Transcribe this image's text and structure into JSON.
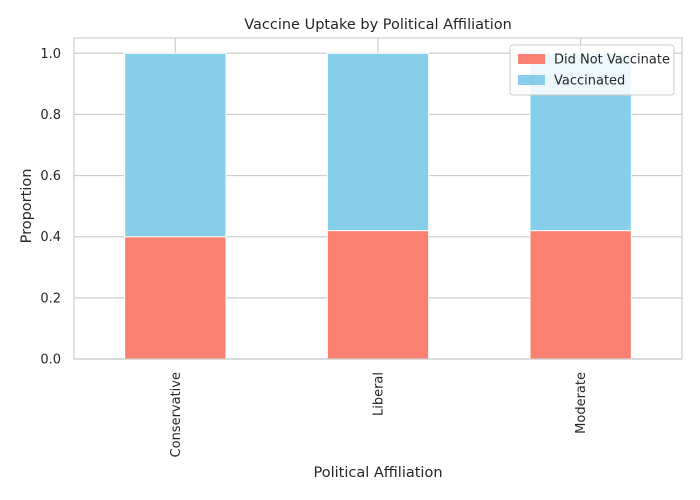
{
  "chart_data": {
    "type": "bar",
    "stacked": true,
    "title": "Vaccine Uptake by Political Affiliation",
    "xlabel": "Political Affiliation",
    "ylabel": "Proportion",
    "categories": [
      "Conservative",
      "Liberal",
      "Moderate"
    ],
    "series": [
      {
        "name": "Did Not Vaccinate",
        "values": [
          0.4,
          0.42,
          0.42
        ],
        "color": "#fa8072"
      },
      {
        "name": "Vaccinated",
        "values": [
          0.6,
          0.58,
          0.58
        ],
        "color": "#87ceeb"
      }
    ],
    "ylim": [
      0,
      1.05
    ],
    "yticks": [
      0.0,
      0.2,
      0.4,
      0.6,
      0.8,
      1.0
    ],
    "ytick_labels": [
      "0.0",
      "0.2",
      "0.4",
      "0.6",
      "0.8",
      "1.0"
    ],
    "grid": true,
    "legend": {
      "placement": "top-right"
    }
  }
}
